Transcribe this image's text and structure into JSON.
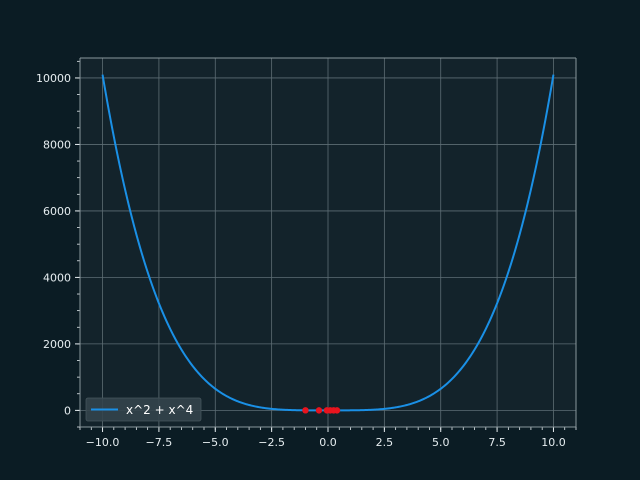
{
  "chart_data": {
    "type": "line",
    "title": "",
    "xlabel": "",
    "ylabel": "",
    "xlim": [
      -11,
      11
    ],
    "ylim": [
      -500,
      10600
    ],
    "xticks": [
      -10.0,
      -7.5,
      -5.0,
      -2.5,
      0.0,
      2.5,
      5.0,
      7.5,
      10.0
    ],
    "xtick_labels": [
      "−10.0",
      "−7.5",
      "−5.0",
      "−2.5",
      "0.0",
      "2.5",
      "5.0",
      "7.5",
      "10.0"
    ],
    "yticks": [
      0,
      2000,
      4000,
      6000,
      8000,
      10000
    ],
    "ytick_labels": [
      "0",
      "2000",
      "4000",
      "6000",
      "8000",
      "10000"
    ],
    "grid": true,
    "legend": {
      "placement": "lower-left"
    },
    "series": [
      {
        "name": "x^2 + x^4",
        "color": "#1a90e6",
        "function": "x^2 + x^4",
        "x_range": [
          -10,
          10
        ]
      }
    ],
    "points": {
      "color": "#e8141e",
      "x": [
        -1.0,
        -0.4,
        -0.05,
        0.1,
        0.25,
        0.4
      ],
      "y": [
        2,
        0.19,
        0.003,
        0.01,
        0.07,
        0.19
      ]
    }
  },
  "colors": {
    "figure_bg": "#0b1c24",
    "axes_bg": "#13232b",
    "grid": "#5d6d74",
    "spine": "#8a979c",
    "text": "#e6edf0"
  }
}
